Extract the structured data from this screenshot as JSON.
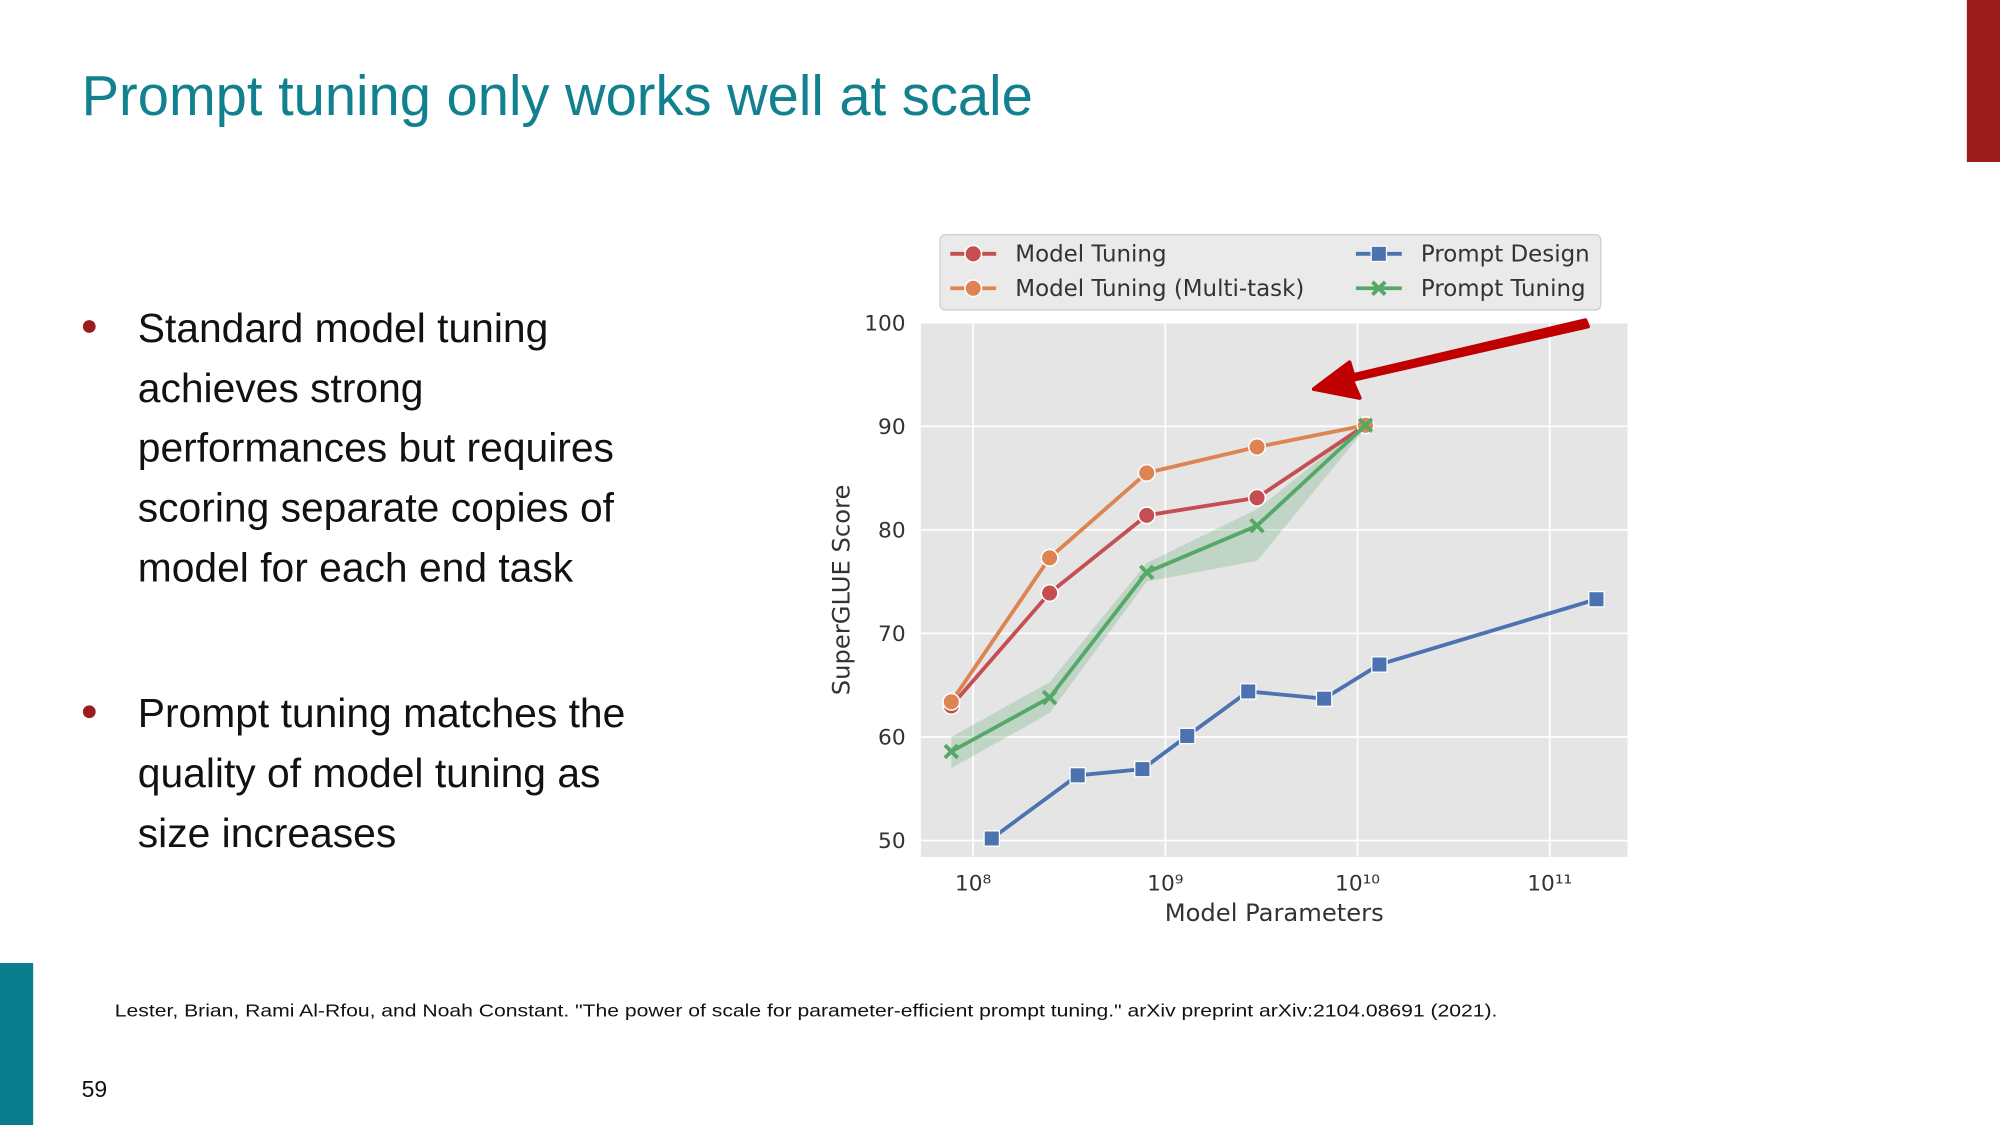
{
  "title": "Prompt tuning only works well at scale",
  "bullets": [
    [
      "Standard model tuning",
      "achieves strong",
      "performances but requires",
      "scoring separate copies of",
      "model for each end task"
    ],
    [
      "Prompt tuning matches the",
      "quality of model tuning as",
      "size increases"
    ]
  ],
  "citation": "Lester, Brian, Rami Al-Rfou, and Noah Constant. \"The power of scale for parameter-efficient prompt tuning.\" arXiv preprint arXiv:2104.08691 (2021).",
  "page_number": "59",
  "chart_data": {
    "type": "line",
    "xlabel": "Model Parameters",
    "ylabel": "SuperGLUE Score",
    "xscale": "log",
    "xlim": [
      53500000,
      254000000000
    ],
    "ylim": [
      48.4,
      100
    ],
    "xticks": [
      {
        "value": 100000000,
        "label": "10⁸"
      },
      {
        "value": 1000000000,
        "label": "10⁹"
      },
      {
        "value": 10000000000,
        "label": "10¹⁰"
      },
      {
        "value": 100000000000,
        "label": "10¹¹"
      }
    ],
    "yticks": [
      50,
      60,
      70,
      80,
      90,
      100
    ],
    "grid": true,
    "legend": "top",
    "series": [
      {
        "name": "Model Tuning",
        "color": "#c44e52",
        "marker": "circle",
        "x": [
          77000000,
          250000000,
          800000000,
          3000000000,
          11000000000
        ],
        "values": [
          63.0,
          73.9,
          81.4,
          83.1,
          90.1
        ]
      },
      {
        "name": "Model Tuning (Multi-task)",
        "color": "#dd8452",
        "marker": "circle",
        "x": [
          77000000,
          250000000,
          800000000,
          3000000000,
          11000000000
        ],
        "values": [
          63.4,
          77.3,
          85.5,
          88.0,
          90.1
        ]
      },
      {
        "name": "Prompt Design",
        "color": "#4c72b0",
        "marker": "square",
        "x": [
          125000000,
          350000000,
          760000000,
          1300000000,
          2700000000,
          6700000000,
          13000000000,
          175000000000
        ],
        "values": [
          50.2,
          56.3,
          56.9,
          60.1,
          64.4,
          63.7,
          67.0,
          73.3
        ]
      },
      {
        "name": "Prompt Tuning",
        "color": "#55a868",
        "marker": "x",
        "x": [
          77000000,
          250000000,
          800000000,
          3000000000,
          11000000000
        ],
        "values": [
          58.6,
          63.8,
          75.9,
          80.4,
          90.1
        ],
        "lower": [
          57.0,
          62.3,
          75.0,
          77.0,
          89.8
        ],
        "upper": [
          60.0,
          65.3,
          76.8,
          82.0,
          90.3
        ]
      }
    ]
  }
}
